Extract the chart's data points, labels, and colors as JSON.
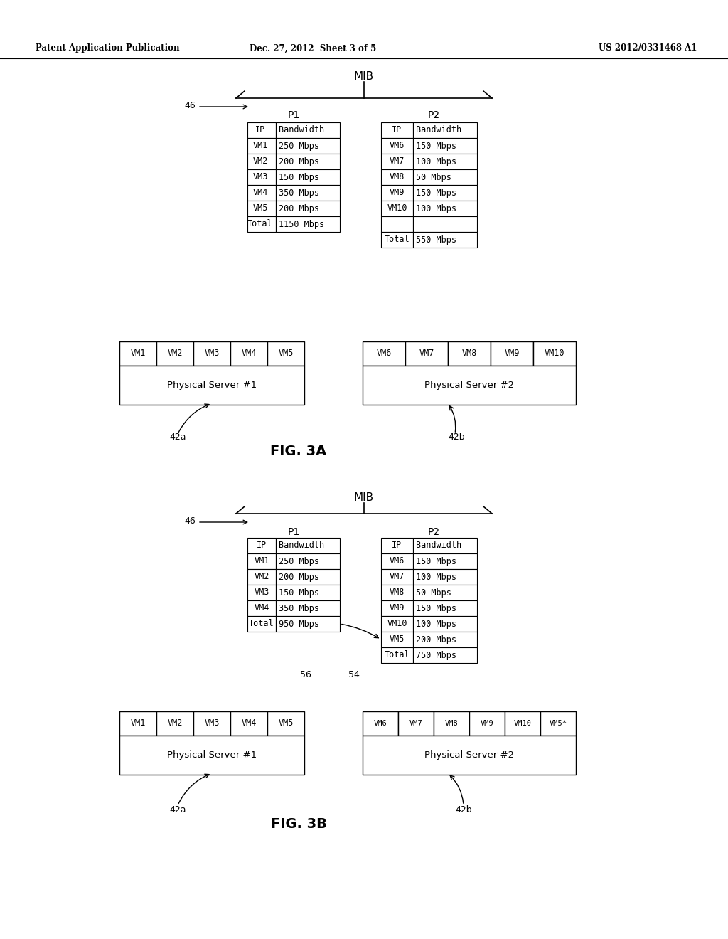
{
  "bg_color": "#ffffff",
  "text_color": "#000000",
  "header_text": {
    "left": "Patent Application Publication",
    "center": "Dec. 27, 2012  Sheet 3 of 5",
    "right": "US 2012/0331468 A1"
  },
  "fig3a": {
    "mib_label": "MIB",
    "brace_label": "46",
    "p1_label": "P1",
    "p2_label": "P2",
    "table1_headers": [
      "IP",
      "Bandwidth"
    ],
    "table1_rows": [
      [
        "VM1",
        "250 Mbps"
      ],
      [
        "VM2",
        "200 Mbps"
      ],
      [
        "VM3",
        "150 Mbps"
      ],
      [
        "VM4",
        "350 Mbps"
      ],
      [
        "VM5",
        "200 Mbps"
      ],
      [
        "Total",
        "1150 Mbps"
      ]
    ],
    "table2_headers": [
      "IP",
      "Bandwidth"
    ],
    "table2_rows": [
      [
        "VM6",
        "150 Mbps"
      ],
      [
        "VM7",
        "100 Mbps"
      ],
      [
        "VM8",
        "50 Mbps"
      ],
      [
        "VM9",
        "150 Mbps"
      ],
      [
        "VM10",
        "100 Mbps"
      ],
      [
        "",
        ""
      ],
      [
        "Total",
        "550 Mbps"
      ]
    ],
    "server1_vms": [
      "VM1",
      "VM2",
      "VM3",
      "VM4",
      "VM5"
    ],
    "server2_vms": [
      "VM6",
      "VM7",
      "VM8",
      "VM9",
      "VM10"
    ],
    "server1_label": "Physical Server #1",
    "server2_label": "Physical Server #2",
    "label_42a": "42a",
    "label_42b": "42b",
    "fig_label": "FIG. 3A"
  },
  "fig3b": {
    "mib_label": "MIB",
    "brace_label": "46",
    "p1_label": "P1",
    "p2_label": "P2",
    "table1_headers": [
      "IP",
      "Bandwidth"
    ],
    "table1_rows": [
      [
        "VM1",
        "250 Mbps"
      ],
      [
        "VM2",
        "200 Mbps"
      ],
      [
        "VM3",
        "150 Mbps"
      ],
      [
        "VM4",
        "350 Mbps"
      ],
      [
        "Total",
        "950 Mbps"
      ]
    ],
    "table2_headers": [
      "IP",
      "Bandwidth"
    ],
    "table2_rows": [
      [
        "VM6",
        "150 Mbps"
      ],
      [
        "VM7",
        "100 Mbps"
      ],
      [
        "VM8",
        "50 Mbps"
      ],
      [
        "VM9",
        "150 Mbps"
      ],
      [
        "VM10",
        "100 Mbps"
      ],
      [
        "VM5",
        "200 Mbps"
      ],
      [
        "Total",
        "750 Mbps"
      ]
    ],
    "arrow_label_56": "56",
    "arrow_label_54": "54",
    "server1_vms": [
      "VM1",
      "VM2",
      "VM3",
      "VM4",
      "VM5"
    ],
    "server2_vms": [
      "VM6",
      "VM7",
      "VM8",
      "VM9",
      "VM10",
      "VM5*"
    ],
    "server1_label": "Physical Server #1",
    "server2_label": "Physical Server #2",
    "label_42a": "42a",
    "label_42b": "42b",
    "fig_label": "FIG. 3B"
  }
}
